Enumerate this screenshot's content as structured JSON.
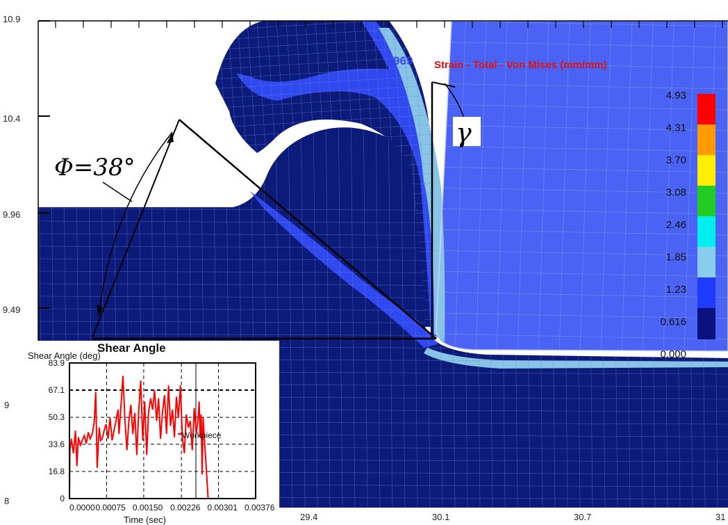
{
  "simulation": {
    "step_label": "969",
    "title": "Strain - Total - Von Mises (mm/mm)",
    "y_ticks": [
      "10.9",
      "10.4",
      "9.96",
      "9.49"
    ],
    "y_ticks_partial": [
      "9",
      "8"
    ],
    "x_ticks": [
      "29.4",
      "30.1",
      "30.7",
      "31"
    ],
    "legend": {
      "values": [
        "4.93",
        "4.31",
        "3.70",
        "3.08",
        "2.46",
        "1.85",
        "1.23",
        "0.616",
        "0.000"
      ],
      "colors": [
        "#ff0000",
        "#ff9a00",
        "#ffee00",
        "#22cc22",
        "#00eeee",
        "#88ccee",
        "#1f3bff",
        "#0b1280"
      ]
    },
    "colors": {
      "workpiece": "#0c1a7a",
      "mid_strain": "#2f48f0",
      "high_strain": "#88c4e6",
      "tool": "#4a63f5",
      "mesh_line": "#6f86d8"
    }
  },
  "annotations": {
    "phi_label": "Φ=38°",
    "gamma_label": "γ",
    "shear_angle_label": "Shear Angle"
  },
  "chart_data": {
    "type": "line",
    "ylabel": "Shear Angle (deg)",
    "xlabel": "Time (sec)",
    "y_ticks": [
      "83.9",
      "67.1",
      "50.3",
      "33.6",
      "16.8",
      "0"
    ],
    "x_ticks": [
      "0.0000",
      "0.00075",
      "0.00150",
      "0.00226",
      "0.00301",
      "0.00376"
    ],
    "ylim": [
      0,
      83.9
    ],
    "xlim": [
      0,
      0.00376
    ],
    "legend": "Workpiece",
    "series": [
      {
        "name": "Workpiece",
        "color": "#ff0000",
        "x": [
          0,
          1e-05,
          4e-05,
          8e-05,
          0.00012,
          0.00015,
          0.00018,
          0.00022,
          0.00026,
          0.0003,
          0.00034,
          0.00038,
          0.00042,
          0.00046,
          0.0005,
          0.00053,
          0.00056,
          0.0006,
          0.00063,
          0.00066,
          0.0007,
          0.00074,
          0.00078,
          0.00082,
          0.00086,
          0.0009,
          0.00094,
          0.00098,
          0.001,
          0.00104,
          0.00108,
          0.00112,
          0.00116,
          0.0012,
          0.00124,
          0.00128,
          0.00132,
          0.00136,
          0.0014,
          0.00144,
          0.00148,
          0.00152,
          0.00156,
          0.0016,
          0.00164,
          0.00168,
          0.00172,
          0.00176,
          0.0018,
          0.00184,
          0.00188,
          0.00192,
          0.00196,
          0.002,
          0.00204,
          0.00208,
          0.00212,
          0.00216,
          0.0022,
          0.00224,
          0.00228,
          0.00232,
          0.00236,
          0.0024,
          0.00244,
          0.00248,
          0.00252,
          0.00256,
          0.0026,
          0.00262,
          0.00264,
          0.00266,
          0.00268,
          0.0027,
          0.0028,
          0.0029,
          0.003,
          0.0033,
          0.00376
        ],
        "y": [
          0,
          30,
          37,
          28,
          42,
          20,
          38,
          33,
          36,
          39,
          34,
          41,
          37,
          40,
          47,
          66,
          19,
          44,
          36,
          37,
          42,
          46,
          37,
          50,
          36,
          42,
          48,
          55,
          40,
          57,
          76,
          49,
          30,
          48,
          58,
          40,
          53,
          27,
          55,
          73,
          36,
          60,
          27,
          54,
          62,
          55,
          67,
          48,
          62,
          37,
          54,
          64,
          40,
          70,
          45,
          55,
          38,
          63,
          50,
          70,
          38,
          28,
          52,
          44,
          48,
          30,
          56,
          40,
          50,
          60,
          38,
          52,
          15,
          50,
          0,
          0,
          0,
          0,
          0
        ]
      }
    ]
  }
}
